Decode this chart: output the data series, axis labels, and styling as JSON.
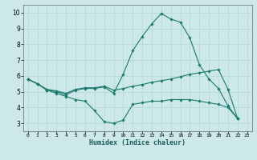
{
  "xlabel": "Humidex (Indice chaleur)",
  "ylabel": "",
  "background_color": "#cce8e8",
  "grid_color": "#b8d8d8",
  "line_color": "#1a7a6e",
  "xlim": [
    -0.5,
    23.5
  ],
  "ylim": [
    2.5,
    10.5
  ],
  "xticks": [
    0,
    1,
    2,
    3,
    4,
    5,
    6,
    7,
    8,
    9,
    10,
    11,
    12,
    13,
    14,
    15,
    16,
    17,
    18,
    19,
    20,
    21,
    22,
    23
  ],
  "yticks": [
    3,
    4,
    5,
    6,
    7,
    8,
    9,
    10
  ],
  "series": [
    {
      "x": [
        0,
        1,
        2,
        3,
        4,
        5,
        6,
        7,
        8,
        9,
        10,
        11,
        12,
        13,
        14,
        15,
        16,
        17,
        18,
        19,
        20,
        21,
        22
      ],
      "y": [
        5.8,
        5.5,
        5.1,
        5.0,
        4.8,
        5.1,
        5.2,
        5.2,
        5.3,
        4.9,
        6.1,
        7.6,
        8.5,
        9.3,
        9.95,
        9.6,
        9.4,
        8.4,
        6.7,
        5.8,
        5.2,
        4.1,
        3.3
      ]
    },
    {
      "x": [
        0,
        1,
        2,
        3,
        4,
        5,
        6,
        7,
        8,
        9,
        10,
        11,
        12,
        13,
        14,
        15,
        16,
        17,
        18,
        19,
        20,
        21,
        22
      ],
      "y": [
        5.8,
        5.5,
        5.1,
        4.9,
        4.7,
        4.5,
        4.4,
        3.8,
        3.1,
        3.0,
        3.2,
        4.2,
        4.3,
        4.4,
        4.4,
        4.5,
        4.5,
        4.5,
        4.4,
        4.3,
        4.2,
        4.0,
        3.3
      ]
    },
    {
      "x": [
        0,
        1,
        2,
        3,
        4,
        5,
        6,
        7,
        8,
        9,
        10,
        11,
        12,
        13,
        14,
        15,
        16,
        17,
        18,
        19,
        20,
        21,
        22
      ],
      "y": [
        5.8,
        5.5,
        5.15,
        5.05,
        4.9,
        5.15,
        5.25,
        5.25,
        5.35,
        5.1,
        5.2,
        5.35,
        5.45,
        5.6,
        5.7,
        5.8,
        5.95,
        6.1,
        6.2,
        6.3,
        6.4,
        5.15,
        3.3
      ]
    }
  ]
}
